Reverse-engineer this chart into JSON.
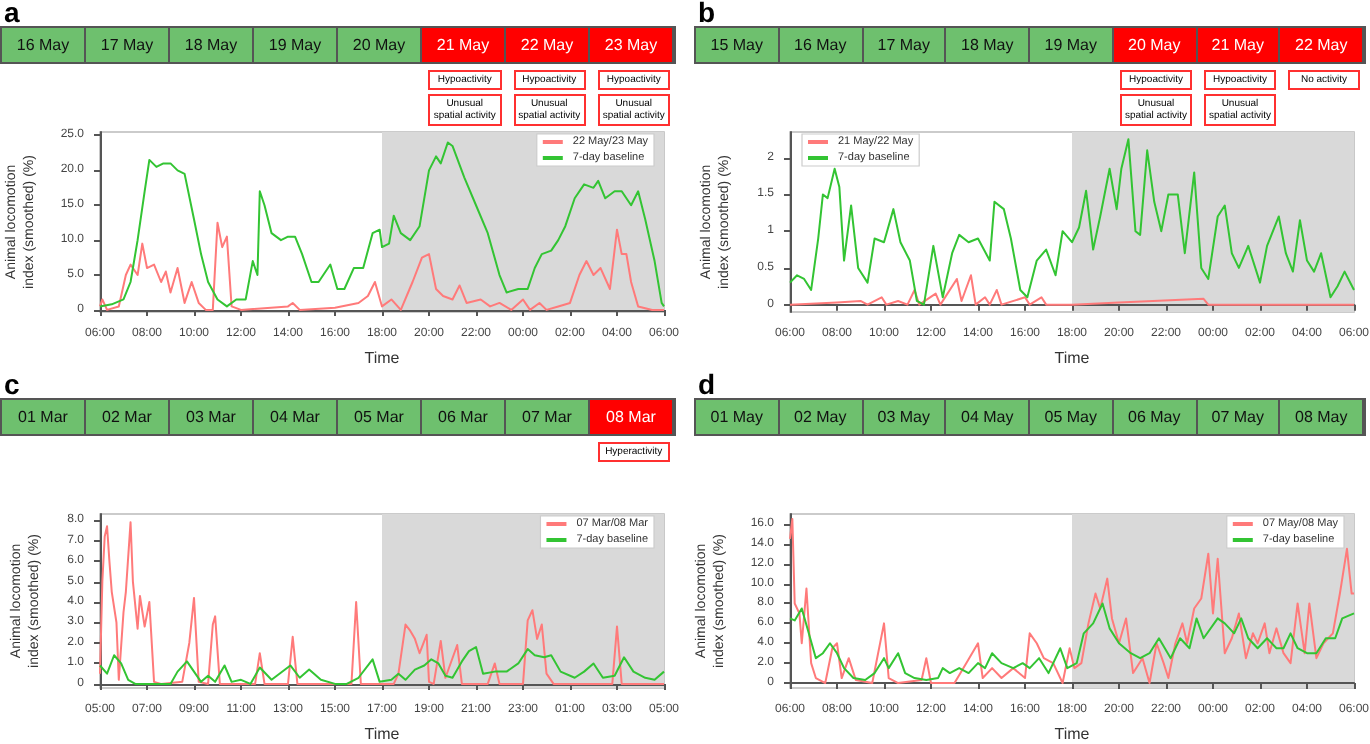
{
  "chart_data": [
    {
      "type": "other",
      "title": "a",
      "categories": [
        "16 May",
        "17 May",
        "18 May",
        "19 May",
        "20 May",
        "21 May",
        "22 May",
        "23 May"
      ],
      "colors": [
        "#6ec06e",
        "#6ec06e",
        "#6ec06e",
        "#6ec06e",
        "#6ec06e",
        "#ff0000",
        "#ff0000",
        "#ff0000"
      ],
      "annotations": [
        {
          "text": "Hypoactivity",
          "x": "21 May"
        },
        {
          "text": "Unusual spatial activity",
          "x": "21 May"
        },
        {
          "text": "Hypoactivity",
          "x": "22 May"
        },
        {
          "text": "Unusual spatial activity",
          "x": "22 May"
        },
        {
          "text": "Hypoactivity",
          "x": "23 May"
        },
        {
          "text": "Unusual spatial activity",
          "x": "23 May"
        }
      ]
    },
    {
      "type": "line",
      "xlabel": "Time",
      "ylabel": "Animal locomotion index (smoothed) (%)",
      "legend": "top right",
      "marker": "none",
      "xlim": [
        "--05-22T06:00",
        "--05-23T06:00"
      ],
      "xticks": [
        {
          "value": "--05-22T06:00",
          "label": "06:00"
        },
        {
          "value": "--05-22T08:00",
          "label": "08:00"
        },
        {
          "value": "--05-22T10:00",
          "label": "10:00"
        },
        {
          "value": "--05-22T12:00",
          "label": "12:00"
        },
        {
          "value": "--05-22T14:00",
          "label": "14:00"
        },
        {
          "value": "--05-22T16:00",
          "label": "16:00"
        },
        {
          "value": "--05-22T18:00",
          "label": "18:00"
        },
        {
          "value": "--05-22T20:00",
          "label": "20:00"
        },
        {
          "value": "--05-22T22:00",
          "label": "22:00"
        },
        {
          "value": "--05-23T00:00",
          "label": "00:00"
        },
        {
          "value": "--05-23T02:00",
          "label": "02:00"
        },
        {
          "value": "--05-23T04:00",
          "label": "04:00"
        },
        {
          "value": "--05-23T06:00",
          "label": "06:00"
        }
      ],
      "ylim": [
        -0.3,
        25.5
      ],
      "yticks": [
        0,
        {
          "value": 5,
          "label": "5.0"
        },
        {
          "value": 10,
          "label": "10.0"
        },
        {
          "value": 15,
          "label": "15.0"
        },
        {
          "value": 20,
          "label": "20.0"
        },
        {
          "value": 25,
          "label": "25.0"
        }
      ],
      "bands": [
        {
          "axis": "x",
          "from": "--05-22T18:00",
          "to": "--05-23T06:00",
          "color": "#d9d9d9"
        }
      ],
      "series": [
        {
          "name": "22 May/23 May",
          "color": "#ff7a7a",
          "x": [
            "--05-22T06:00",
            "--05-22T06:06",
            "--05-22T06:18",
            "--05-22T06:48",
            "--05-22T07:06",
            "--05-22T07:18",
            "--05-22T07:36",
            "--05-22T07:48",
            "--05-22T08:00",
            "--05-22T08:18",
            "--05-22T08:36",
            "--05-22T08:48",
            "--05-22T09:00",
            "--05-22T09:18",
            "--05-22T09:36",
            "--05-22T09:54",
            "--05-22T10:12",
            "--05-22T10:30",
            "--05-22T10:48",
            "--05-22T11:00",
            "--05-22T11:12",
            "--05-22T11:24",
            "--05-22T11:36",
            "--05-22T12:00",
            "--05-22T14:00",
            "--05-22T14:12",
            "--05-22T14:30",
            "--05-22T16:00",
            "--05-22T17:00",
            "--05-22T17:24",
            "--05-22T17:42",
            "--05-22T18:00",
            "--05-22T18:24",
            "--05-22T18:48",
            "--05-22T19:18",
            "--05-22T19:42",
            "--05-22T20:00",
            "--05-22T20:18",
            "--05-22T20:36",
            "--05-22T21:00",
            "--05-22T21:18",
            "--05-22T21:36",
            "--05-22T22:12",
            "--05-22T22:36",
            "--05-22T23:00",
            "--05-22T23:30",
            "--05-23T00:00",
            "--05-23T00:18",
            "--05-23T00:42",
            "--05-23T01:00",
            "--05-23T01:30",
            "--05-23T02:00",
            "--05-23T02:24",
            "--05-23T02:42",
            "--05-23T03:00",
            "--05-23T03:18",
            "--05-23T03:42",
            "--05-23T04:00",
            "--05-23T04:12",
            "--05-23T04:24",
            "--05-23T04:36",
            "--05-23T04:54",
            "--05-23T05:30",
            "--05-23T06:00"
          ],
          "values": [
            0.5,
            1.5,
            0,
            0.5,
            5,
            6.5,
            5,
            9.5,
            6,
            6.5,
            4,
            5.5,
            2.5,
            6,
            1,
            4,
            1,
            0,
            0,
            12.5,
            9,
            10.5,
            0.5,
            0,
            0.5,
            1,
            0,
            0.3,
            1,
            2,
            4,
            0.5,
            1.5,
            0,
            4,
            7.5,
            8,
            3,
            2,
            1.5,
            3.5,
            1,
            1.5,
            0.5,
            1,
            0,
            1.5,
            0,
            1,
            0,
            0.5,
            1,
            5,
            7,
            5,
            6,
            3,
            11.5,
            8,
            8,
            4,
            0.5,
            0,
            0
          ]
        },
        {
          "name": "7-day baseline",
          "color": "#33c433",
          "x": [
            "--05-22T06:00",
            "--05-22T06:30",
            "--05-22T07:00",
            "--05-22T07:18",
            "--05-22T07:36",
            "--05-22T07:54",
            "--05-22T08:06",
            "--05-22T08:24",
            "--05-22T08:42",
            "--05-22T09:00",
            "--05-22T09:18",
            "--05-22T09:36",
            "--05-22T10:00",
            "--05-22T10:18",
            "--05-22T10:36",
            "--05-22T11:00",
            "--05-22T11:24",
            "--05-22T11:48",
            "--05-22T12:12",
            "--05-22T12:30",
            "--05-22T12:42",
            "--05-22T12:48",
            "--05-22T13:00",
            "--05-22T13:18",
            "--05-22T13:42",
            "--05-22T14:00",
            "--05-22T14:18",
            "--05-22T14:36",
            "--05-22T15:00",
            "--05-22T15:18",
            "--05-22T15:48",
            "--05-22T16:06",
            "--05-22T16:24",
            "--05-22T16:48",
            "--05-22T17:12",
            "--05-22T17:36",
            "--05-22T17:54",
            "--05-22T18:00",
            "--05-22T18:18",
            "--05-22T18:30",
            "--05-22T18:48",
            "--05-22T19:12",
            "--05-22T19:36",
            "--05-22T20:00",
            "--05-22T20:18",
            "--05-22T20:30",
            "--05-22T20:48",
            "--05-22T21:00",
            "--05-22T21:30",
            "--05-22T22:00",
            "--05-22T22:30",
            "--05-22T23:00",
            "--05-22T23:18",
            "--05-22T23:48",
            "--05-23T00:12",
            "--05-23T00:30",
            "--05-23T00:48",
            "--05-23T01:12",
            "--05-23T01:30",
            "--05-23T01:48",
            "--05-23T02:12",
            "--05-23T02:36",
            "--05-23T03:00",
            "--05-23T03:12",
            "--05-23T03:30",
            "--05-23T03:54",
            "--05-23T04:12",
            "--05-23T04:36",
            "--05-23T04:54",
            "--05-23T05:12",
            "--05-23T05:36",
            "--05-23T05:54",
            "--05-23T06:00"
          ],
          "values": [
            0.5,
            0.8,
            1.5,
            4,
            10,
            17,
            21.5,
            20.5,
            21,
            21,
            20,
            19.5,
            13,
            8,
            4,
            1.5,
            0.5,
            1.5,
            1.5,
            7,
            5,
            17,
            15,
            11,
            10,
            10.5,
            10.5,
            8,
            4,
            4,
            6.5,
            3,
            3,
            6,
            6,
            11,
            11.5,
            9,
            9.5,
            13.5,
            11,
            10,
            12,
            20,
            22,
            21,
            24,
            23.5,
            19,
            15,
            11,
            5,
            2.5,
            3,
            3,
            6,
            8,
            8.5,
            10,
            12,
            16,
            18,
            17.5,
            18.5,
            16,
            17,
            17,
            15,
            17,
            13,
            7,
            1,
            0.5
          ]
        }
      ]
    },
    {
      "type": "other",
      "title": "b",
      "categories": [
        "15 May",
        "16 May",
        "17 May",
        "18 May",
        "19 May",
        "20 May",
        "21 May",
        "22 May"
      ],
      "colors": [
        "#6ec06e",
        "#6ec06e",
        "#6ec06e",
        "#6ec06e",
        "#6ec06e",
        "#ff0000",
        "#ff0000",
        "#ff0000"
      ],
      "annotations": [
        {
          "text": "Hypoactivity",
          "x": "20 May"
        },
        {
          "text": "Unusual spatial activity",
          "x": "20 May"
        },
        {
          "text": "Hypoactivity",
          "x": "21 May"
        },
        {
          "text": "Unusual spatial activity",
          "x": "21 May"
        },
        {
          "text": "No activity",
          "x": "22 May"
        }
      ]
    },
    {
      "type": "line",
      "xlabel": "Time",
      "ylabel": "Animal locomotion index (smoothed) (%)",
      "legend": "top left",
      "marker": "none",
      "xlim": [
        "--05-21T06:00",
        "--05-22T06:00"
      ],
      "xticks": [
        {
          "value": "--05-21T06:00",
          "label": "06:00"
        },
        {
          "value": "--05-21T08:00",
          "label": "08:00"
        },
        {
          "value": "--05-21T10:00",
          "label": "10:00"
        },
        {
          "value": "--05-21T12:00",
          "label": "12:00"
        },
        {
          "value": "--05-21T14:00",
          "label": "14:00"
        },
        {
          "value": "--05-21T16:00",
          "label": "16:00"
        },
        {
          "value": "--05-21T18:00",
          "label": "18:00"
        },
        {
          "value": "--05-21T20:00",
          "label": "20:00"
        },
        {
          "value": "--05-21T22:00",
          "label": "22:00"
        },
        {
          "value": "--05-22T00:00",
          "label": "00:00"
        },
        {
          "value": "--05-22T02:00",
          "label": "02:00"
        },
        {
          "value": "--05-22T04:00",
          "label": "04:00"
        },
        {
          "value": "--05-22T06:00",
          "label": "06:00"
        }
      ],
      "ylim": [
        -0.1,
        2.35
      ],
      "yticks": [
        0,
        0.5,
        1,
        1.5,
        2
      ],
      "bands": [
        {
          "axis": "x",
          "from": "--05-21T18:00",
          "to": "--05-22T06:00",
          "color": "#d9d9d9"
        }
      ],
      "series": [
        {
          "name": "21 May/22 May",
          "color": "#ff7a7a",
          "x": [
            "--05-21T06:00",
            "--05-21T08:00",
            "--05-21T09:00",
            "--05-21T09:18",
            "--05-21T09:54",
            "--05-21T10:06",
            "--05-21T10:36",
            "--05-21T11:00",
            "--05-21T11:18",
            "--05-21T11:30",
            "--05-21T12:12",
            "--05-21T12:24",
            "--05-21T13:06",
            "--05-21T13:18",
            "--05-21T13:42",
            "--05-21T13:54",
            "--05-21T14:18",
            "--05-21T14:30",
            "--05-21T14:48",
            "--05-21T15:00",
            "--05-21T16:00",
            "--05-21T16:12",
            "--05-21T16:42",
            "--05-21T16:54",
            "--05-21T18:00",
            "--05-21T20:00",
            "--05-21T23:36",
            "--05-21T23:48",
            "--05-22T06:00"
          ],
          "values": [
            0,
            0.03,
            0.05,
            0,
            0.1,
            0,
            0.05,
            0,
            0.2,
            0,
            0.15,
            0,
            0.35,
            0.05,
            0.4,
            0,
            0.1,
            0,
            0.2,
            0,
            0.1,
            0,
            0.1,
            0,
            0,
            0.03,
            0.08,
            0,
            0
          ]
        },
        {
          "name": "7-day baseline",
          "color": "#33c433",
          "x": [
            "--05-21T06:00",
            "--05-21T06:18",
            "--05-21T06:36",
            "--05-21T06:54",
            "--05-21T07:12",
            "--05-21T07:24",
            "--05-21T07:36",
            "--05-21T07:54",
            "--05-21T08:06",
            "--05-21T08:18",
            "--05-21T08:36",
            "--05-21T08:54",
            "--05-21T09:18",
            "--05-21T09:36",
            "--05-21T10:00",
            "--05-21T10:24",
            "--05-21T10:42",
            "--05-21T11:06",
            "--05-21T11:24",
            "--05-21T11:42",
            "--05-21T12:06",
            "--05-21T12:30",
            "--05-21T12:54",
            "--05-21T13:12",
            "--05-21T13:36",
            "--05-21T14:00",
            "--05-21T14:30",
            "--05-21T14:42",
            "--05-21T15:06",
            "--05-21T15:24",
            "--05-21T15:48",
            "--05-21T16:06",
            "--05-21T16:30",
            "--05-21T16:54",
            "--05-21T17:18",
            "--05-21T17:36",
            "--05-21T18:00",
            "--05-21T18:18",
            "--05-21T18:36",
            "--05-21T18:54",
            "--05-21T19:12",
            "--05-21T19:36",
            "--05-21T19:54",
            "--05-21T20:06",
            "--05-21T20:24",
            "--05-21T20:42",
            "--05-21T20:54",
            "--05-21T21:12",
            "--05-21T21:30",
            "--05-21T21:48",
            "--05-21T22:06",
            "--05-21T22:30",
            "--05-21T22:48",
            "--05-21T23:12",
            "--05-21T23:30",
            "--05-21T23:48",
            "--05-22T00:12",
            "--05-22T00:30",
            "--05-22T00:48",
            "--05-22T01:06",
            "--05-22T01:30",
            "--05-22T02:00",
            "--05-22T02:18",
            "--05-22T02:48",
            "--05-22T03:06",
            "--05-22T03:24",
            "--05-22T03:42",
            "--05-22T04:00",
            "--05-22T04:18",
            "--05-22T04:36",
            "--05-22T05:00",
            "--05-22T05:18",
            "--05-22T05:36",
            "--05-22T06:00"
          ],
          "values": [
            0.3,
            0.4,
            0.35,
            0.2,
            0.9,
            1.5,
            1.45,
            1.85,
            1.6,
            0.6,
            1.35,
            0.5,
            0.3,
            0.9,
            0.85,
            1.3,
            0.85,
            0.6,
            0.05,
            0,
            0.8,
            0.1,
            0.7,
            0.95,
            0.85,
            0.9,
            0.6,
            1.4,
            1.3,
            0.9,
            0.2,
            0.1,
            0.6,
            0.75,
            0.4,
            1,
            0.85,
            1.05,
            1.55,
            0.75,
            1.2,
            1.85,
            1.3,
            1.85,
            2.25,
            1,
            0.95,
            2.1,
            1.4,
            1,
            1.5,
            1.5,
            0.7,
            1.8,
            0.5,
            0.35,
            1.2,
            1.35,
            0.7,
            0.5,
            0.8,
            0.3,
            0.8,
            1.2,
            0.7,
            0.45,
            1.15,
            0.6,
            0.45,
            0.7,
            0.1,
            0.25,
            0.45,
            0.2
          ]
        }
      ]
    },
    {
      "type": "other",
      "title": "c",
      "categories": [
        "01 Mar",
        "02 Mar",
        "03 Mar",
        "04 Mar",
        "05 Mar",
        "06 Mar",
        "07 Mar",
        "08 Mar"
      ],
      "colors": [
        "#6ec06e",
        "#6ec06e",
        "#6ec06e",
        "#6ec06e",
        "#6ec06e",
        "#6ec06e",
        "#6ec06e",
        "#ff0000"
      ],
      "annotations": [
        {
          "text": "Hyperactivity",
          "x": "08 Mar"
        }
      ]
    },
    {
      "type": "line",
      "xlabel": "Time",
      "ylabel": "Animal locomotion index (smoothed) (%)",
      "legend": "top right",
      "marker": "none",
      "xlim": [
        "--03-07T05:00",
        "--03-08T05:00"
      ],
      "xticks": [
        {
          "value": "--03-07T05:00",
          "label": "05:00"
        },
        {
          "value": "--03-07T07:00",
          "label": "07:00"
        },
        {
          "value": "--03-07T09:00",
          "label": "09:00"
        },
        {
          "value": "--03-07T11:00",
          "label": "11:00"
        },
        {
          "value": "--03-07T13:00",
          "label": "13:00"
        },
        {
          "value": "--03-07T15:00",
          "label": "15:00"
        },
        {
          "value": "--03-07T17:00",
          "label": "17:00"
        },
        {
          "value": "--03-07T19:00",
          "label": "19:00"
        },
        {
          "value": "--03-07T21:00",
          "label": "21:00"
        },
        {
          "value": "--03-07T23:00",
          "label": "23:00"
        },
        {
          "value": "--03-08T01:00",
          "label": "01:00"
        },
        {
          "value": "--03-08T03:00",
          "label": "03:00"
        },
        {
          "value": "--03-08T05:00",
          "label": "05:00"
        }
      ],
      "ylim": [
        -0.2,
        8.3
      ],
      "yticks": [
        0,
        {
          "value": 1,
          "label": "1.0"
        },
        {
          "value": 2,
          "label": "2.0"
        },
        {
          "value": 3,
          "label": "3.0"
        },
        {
          "value": 4,
          "label": "4.0"
        },
        {
          "value": 5,
          "label": "5.0"
        },
        {
          "value": 6,
          "label": "6.0"
        },
        {
          "value": 7,
          "label": "7.0"
        },
        {
          "value": 8,
          "label": "8.0"
        }
      ],
      "bands": [
        {
          "axis": "x",
          "from": "--03-07T17:00",
          "to": "--03-08T05:00",
          "color": "#d9d9d9"
        }
      ],
      "series": [
        {
          "name": "07 Mar/08 Mar",
          "color": "#ff7a7a",
          "x": [
            "--03-07T05:00",
            "--03-07T05:06",
            "--03-07T05:12",
            "--03-07T05:18",
            "--03-07T05:24",
            "--03-07T05:30",
            "--03-07T05:42",
            "--03-07T05:48",
            "--03-07T06:00",
            "--03-07T06:06",
            "--03-07T06:18",
            "--03-07T06:24",
            "--03-07T06:36",
            "--03-07T06:42",
            "--03-07T06:54",
            "--03-07T07:06",
            "--03-07T07:18",
            "--03-07T07:36",
            "--03-07T08:30",
            "--03-07T08:48",
            "--03-07T09:00",
            "--03-07T09:12",
            "--03-07T09:36",
            "--03-07T09:48",
            "--03-07T09:54",
            "--03-07T10:06",
            "--03-07T11:36",
            "--03-07T11:48",
            "--03-07T12:00",
            "--03-07T13:00",
            "--03-07T13:12",
            "--03-07T13:24",
            "--03-07T15:42",
            "--03-07T15:54",
            "--03-07T16:06",
            "--03-07T17:30",
            "--03-07T17:42",
            "--03-07T18:00",
            "--03-07T18:12",
            "--03-07T18:24",
            "--03-07T18:36",
            "--03-07T18:54",
            "--03-07T19:00",
            "--03-07T19:12",
            "--03-07T19:30",
            "--03-07T19:42",
            "--03-07T20:12",
            "--03-07T20:24",
            "--03-07T21:30",
            "--03-07T21:48",
            "--03-07T22:00",
            "--03-07T23:00",
            "--03-07T23:12",
            "--03-07T23:24",
            "--03-07T23:36",
            "--03-07T23:48",
            "--03-08T00:00",
            "--03-08T00:18",
            "--03-08T02:48",
            "--03-08T03:00",
            "--03-08T03:12",
            "--03-08T05:00"
          ],
          "values": [
            0.5,
            5,
            7.2,
            7.7,
            6,
            4.5,
            3,
            0.2,
            3.5,
            4.5,
            7.9,
            5,
            2.7,
            4.3,
            2.8,
            4,
            0.1,
            0,
            0.1,
            2,
            4.2,
            0.1,
            0,
            2.9,
            3.3,
            0,
            0,
            1.5,
            0,
            0,
            2.3,
            0,
            0,
            4,
            0,
            0,
            0.5,
            2.9,
            2.6,
            2.2,
            1.5,
            2.4,
            0.1,
            0,
            2.1,
            0.3,
            1.9,
            0,
            0,
            1,
            0,
            0,
            3.1,
            3.6,
            2.2,
            2.9,
            0.5,
            0,
            0,
            2.8,
            0,
            0
          ]
        },
        {
          "name": "7-day baseline",
          "color": "#33c433",
          "x": [
            "--03-07T05:00",
            "--03-07T05:18",
            "--03-07T05:36",
            "--03-07T05:54",
            "--03-07T06:12",
            "--03-07T06:30",
            "--03-07T08:00",
            "--03-07T08:18",
            "--03-07T08:42",
            "--03-07T09:00",
            "--03-07T09:18",
            "--03-07T09:36",
            "--03-07T09:54",
            "--03-07T10:18",
            "--03-07T10:36",
            "--03-07T11:00",
            "--03-07T11:24",
            "--03-07T11:48",
            "--03-07T12:18",
            "--03-07T13:06",
            "--03-07T13:30",
            "--03-07T13:54",
            "--03-07T14:24",
            "--03-07T15:00",
            "--03-07T15:30",
            "--03-07T16:00",
            "--03-07T16:36",
            "--03-07T16:54",
            "--03-07T17:24",
            "--03-07T17:42",
            "--03-07T18:00",
            "--03-07T18:24",
            "--03-07T18:48",
            "--03-07T19:06",
            "--03-07T19:24",
            "--03-07T19:42",
            "--03-07T20:00",
            "--03-07T20:24",
            "--03-07T20:42",
            "--03-07T21:00",
            "--03-07T21:18",
            "--03-07T21:48",
            "--03-07T22:18",
            "--03-07T22:48",
            "--03-07T23:12",
            "--03-07T23:30",
            "--03-07T23:54",
            "--03-08T00:12",
            "--03-08T00:36",
            "--03-08T01:12",
            "--03-08T01:36",
            "--03-08T02:00",
            "--03-08T02:24",
            "--03-08T02:54",
            "--03-08T03:18",
            "--03-08T03:42",
            "--03-08T04:12",
            "--03-08T04:36",
            "--03-08T05:00"
          ],
          "values": [
            0.9,
            0.5,
            1.4,
            1,
            0.2,
            0,
            0,
            0.6,
            1.1,
            0.6,
            0.1,
            0.4,
            0.1,
            0.9,
            0.1,
            0.2,
            0,
            0.8,
            0.2,
            0.9,
            0.3,
            0.7,
            0.2,
            0,
            0,
            0.3,
            1.2,
            0.1,
            0.2,
            0.5,
            0.2,
            0.7,
            0.9,
            1.2,
            1,
            0.4,
            0.3,
            1.1,
            1.6,
            1.8,
            0.5,
            0.6,
            0.6,
            1,
            1.7,
            1.4,
            1.3,
            1.4,
            0.6,
            0.3,
            0.6,
            1,
            0.3,
            0.4,
            1.3,
            0.6,
            0.3,
            0.2,
            0.6
          ]
        }
      ]
    },
    {
      "type": "other",
      "title": "d",
      "categories": [
        "01 May",
        "02 May",
        "03 May",
        "04 May",
        "05 May",
        "06 May",
        "07 May",
        "08 May"
      ],
      "colors": [
        "#6ec06e",
        "#6ec06e",
        "#6ec06e",
        "#6ec06e",
        "#6ec06e",
        "#6ec06e",
        "#6ec06e",
        "#6ec06e"
      ]
    },
    {
      "type": "line",
      "xlabel": "Time",
      "ylabel": "Animal locomotion index (smoothed) (%)",
      "legend": "top right",
      "marker": "none",
      "xlim": [
        "--05-07T06:00",
        "--05-08T06:00"
      ],
      "xticks": [
        {
          "value": "--05-07T06:00",
          "label": "06:00"
        },
        {
          "value": "--05-07T08:00",
          "label": "08:00"
        },
        {
          "value": "--05-07T10:00",
          "label": "10:00"
        },
        {
          "value": "--05-07T12:00",
          "label": "12:00"
        },
        {
          "value": "--05-07T14:00",
          "label": "14:00"
        },
        {
          "value": "--05-07T16:00",
          "label": "16:00"
        },
        {
          "value": "--05-07T18:00",
          "label": "18:00"
        },
        {
          "value": "--05-07T20:00",
          "label": "20:00"
        },
        {
          "value": "--05-07T22:00",
          "label": "22:00"
        },
        {
          "value": "--05-08T00:00",
          "label": "00:00"
        },
        {
          "value": "--05-08T02:00",
          "label": "02:00"
        },
        {
          "value": "--05-08T04:00",
          "label": "04:00"
        },
        {
          "value": "--05-08T06:00",
          "label": "06:00"
        }
      ],
      "ylim": [
        -0.5,
        17
      ],
      "yticks": [
        0,
        {
          "value": 2,
          "label": "2.0"
        },
        {
          "value": 4,
          "label": "4.0"
        },
        {
          "value": 6,
          "label": "6.0"
        },
        {
          "value": 8,
          "label": "8.0"
        },
        {
          "value": 10,
          "label": "10.0"
        },
        {
          "value": 12,
          "label": "12.0"
        },
        {
          "value": 14,
          "label": "14.0"
        },
        {
          "value": 16,
          "label": "16.0"
        }
      ],
      "bands": [
        {
          "axis": "x",
          "from": "--05-07T18:00",
          "to": "--05-08T06:00",
          "color": "#d9d9d9"
        }
      ],
      "series": [
        {
          "name": "07 May/08 May",
          "color": "#ff7a7a",
          "x": [
            "--05-07T06:00",
            "--05-07T06:06",
            "--05-07T06:12",
            "--05-07T06:24",
            "--05-07T06:30",
            "--05-07T06:42",
            "--05-07T06:54",
            "--05-07T07:06",
            "--05-07T07:30",
            "--05-07T07:48",
            "--05-07T08:00",
            "--05-07T08:12",
            "--05-07T08:30",
            "--05-07T08:48",
            "--05-07T09:30",
            "--05-07T10:00",
            "--05-07T10:12",
            "--05-07T10:36",
            "--05-07T11:36",
            "--05-07T11:48",
            "--05-07T12:00",
            "--05-07T13:00",
            "--05-07T13:30",
            "--05-07T14:00",
            "--05-07T14:12",
            "--05-07T14:36",
            "--05-07T15:00",
            "--05-07T15:30",
            "--05-07T16:00",
            "--05-07T16:12",
            "--05-07T16:30",
            "--05-07T16:48",
            "--05-07T17:12",
            "--05-07T17:36",
            "--05-07T17:54",
            "--05-07T18:06",
            "--05-07T18:24",
            "--05-07T18:42",
            "--05-07T19:00",
            "--05-07T19:12",
            "--05-07T19:30",
            "--05-07T19:42",
            "--05-07T20:00",
            "--05-07T20:18",
            "--05-07T20:36",
            "--05-07T21:00",
            "--05-07T21:18",
            "--05-07T21:36",
            "--05-07T21:54",
            "--05-07T22:06",
            "--05-07T22:24",
            "--05-07T22:42",
            "--05-07T22:54",
            "--05-07T23:12",
            "--05-07T23:30",
            "--05-07T23:48",
            "--05-08T00:00",
            "--05-08T00:12",
            "--05-08T00:30",
            "--05-08T00:48",
            "--05-08T01:06",
            "--05-08T01:24",
            "--05-08T01:42",
            "--05-08T01:54",
            "--05-08T02:12",
            "--05-08T02:24",
            "--05-08T02:42",
            "--05-08T03:00",
            "--05-08T03:18",
            "--05-08T03:36",
            "--05-08T03:54",
            "--05-08T04:06",
            "--05-08T04:24",
            "--05-08T04:42",
            "--05-08T05:06",
            "--05-08T05:24",
            "--05-08T05:42",
            "--05-08T05:54",
            "--05-08T06:00"
          ],
          "values": [
            14.5,
            16.5,
            8,
            7,
            4,
            9.5,
            2,
            0.5,
            0,
            3.5,
            4,
            0.5,
            2.5,
            0.3,
            0,
            6,
            0.5,
            0,
            0.3,
            2.5,
            0,
            0,
            2,
            4,
            0.5,
            1.5,
            0.5,
            1.5,
            0.5,
            5,
            4,
            2.5,
            2,
            0,
            3.5,
            1.5,
            2,
            6,
            9,
            7.5,
            10.5,
            6.5,
            4,
            6.5,
            1,
            2.5,
            0,
            4,
            2,
            0.5,
            4,
            6,
            4,
            7.5,
            8.5,
            13,
            7,
            12.5,
            3,
            4.5,
            7,
            2.5,
            5,
            4,
            6,
            3,
            5.5,
            3,
            2,
            8,
            3,
            8,
            2.5,
            4,
            5,
            9,
            13.5,
            9,
            9
          ]
        },
        {
          "name": "7-day baseline",
          "color": "#33c433",
          "x": [
            "--05-07T06:00",
            "--05-07T06:12",
            "--05-07T06:30",
            "--05-07T06:48",
            "--05-07T07:06",
            "--05-07T07:24",
            "--05-07T07:42",
            "--05-07T08:00",
            "--05-07T08:18",
            "--05-07T08:42",
            "--05-07T09:12",
            "--05-07T09:36",
            "--05-07T10:00",
            "--05-07T10:12",
            "--05-07T10:36",
            "--05-07T10:54",
            "--05-07T11:18",
            "--05-07T11:48",
            "--05-07T12:18",
            "--05-07T12:30",
            "--05-07T12:48",
            "--05-07T13:12",
            "--05-07T13:36",
            "--05-07T14:00",
            "--05-07T14:18",
            "--05-07T14:36",
            "--05-07T15:00",
            "--05-07T15:30",
            "--05-07T15:54",
            "--05-07T16:12",
            "--05-07T16:36",
            "--05-07T17:00",
            "--05-07T17:30",
            "--05-07T17:48",
            "--05-07T18:12",
            "--05-07T18:30",
            "--05-07T18:54",
            "--05-07T19:18",
            "--05-07T19:36",
            "--05-07T20:00",
            "--05-07T20:30",
            "--05-07T20:54",
            "--05-07T21:18",
            "--05-07T21:42",
            "--05-07T22:12",
            "--05-07T22:36",
            "--05-07T23:00",
            "--05-07T23:18",
            "--05-07T23:36",
            "--05-08T00:12",
            "--05-08T00:30",
            "--05-08T00:54",
            "--05-08T01:12",
            "--05-08T01:30",
            "--05-08T01:54",
            "--05-08T02:18",
            "--05-08T02:42",
            "--05-08T03:00",
            "--05-08T03:18",
            "--05-08T03:36",
            "--05-08T04:00",
            "--05-08T04:24",
            "--05-08T04:48",
            "--05-08T05:12",
            "--05-08T05:30",
            "--05-08T06:00"
          ],
          "values": [
            6.5,
            6.3,
            7.5,
            5,
            2.5,
            3,
            4,
            3,
            1.5,
            0.5,
            0.3,
            1,
            2.5,
            1.5,
            3,
            1,
            0.5,
            0.3,
            0.5,
            1.5,
            1,
            1.5,
            1,
            2,
            1.5,
            3,
            2,
            1.5,
            2,
            1.5,
            2.5,
            1,
            3.5,
            1.5,
            2,
            5,
            6,
            8,
            5.5,
            4,
            3,
            2.5,
            3,
            4.5,
            2.5,
            4.5,
            3.5,
            6.5,
            4.5,
            6.5,
            6,
            5,
            6.5,
            4.5,
            3.5,
            4.5,
            3.5,
            3.5,
            5,
            3.5,
            3,
            3,
            4.5,
            4.5,
            6.5,
            7
          ]
        }
      ]
    }
  ]
}
